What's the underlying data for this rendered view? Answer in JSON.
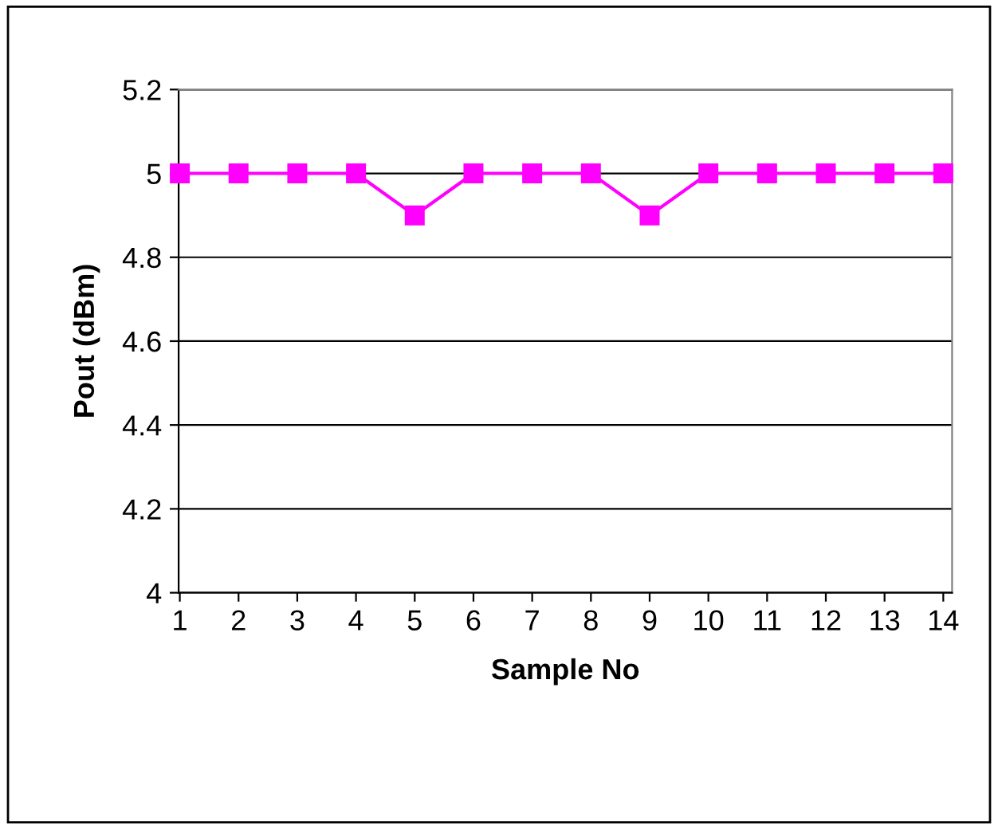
{
  "chart_data": {
    "type": "line",
    "xlabel": "Sample No",
    "ylabel": "Pout (dBm)",
    "categories": [
      "1",
      "2",
      "3",
      "4",
      "5",
      "6",
      "7",
      "8",
      "9",
      "10",
      "11",
      "12",
      "13",
      "14"
    ],
    "series": [
      {
        "color": "#ff00ff",
        "values": [
          5,
          5,
          5,
          5,
          4.9,
          5,
          5,
          5,
          4.9,
          5,
          5,
          5,
          5,
          5
        ]
      }
    ],
    "ylim": [
      4,
      5.2
    ],
    "yticks": [
      4,
      4.2,
      4.4,
      4.6,
      4.8,
      5,
      5.2
    ],
    "grid": "y",
    "marker": "square",
    "line_style": "solid",
    "legend": false
  }
}
